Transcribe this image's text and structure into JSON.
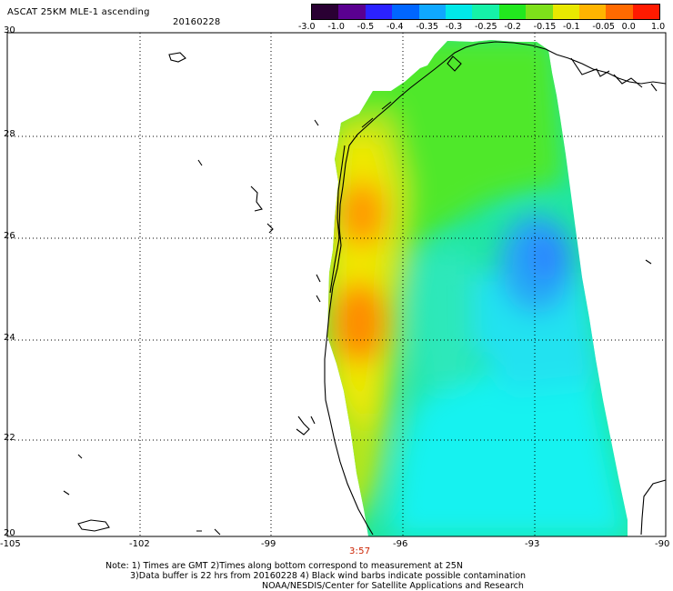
{
  "header": {
    "title": "ASCAT 25KM MLE-1 ascending",
    "date": "20160228"
  },
  "colorbar": {
    "labels": [
      "-3.0",
      "-1.0",
      "-0.5",
      "-0.4",
      "-0.35",
      "-0.3",
      "-0.25",
      "-0.2",
      "-0.15",
      "-0.1",
      "-0.05",
      "0.0",
      "1.0"
    ],
    "colors": [
      "#2a0033",
      "#5a0090",
      "#2b22ff",
      "#0066ff",
      "#0fa8ff",
      "#00e8e8",
      "#15f2a8",
      "#22e81e",
      "#7ee01a",
      "#e8e800",
      "#ffb400",
      "#ff6a00",
      "#ff1a00"
    ]
  },
  "axes": {
    "lat_labels": [
      "30",
      "28",
      "26",
      "24",
      "22",
      "20"
    ],
    "lon_labels": [
      "-105",
      "-102",
      "-99",
      "-96",
      "-93",
      "-90"
    ]
  },
  "time_label": "3:57",
  "time_color": "#cc2200",
  "notes": {
    "line1": "Note: 1) Times are GMT 2)Times along bottom correspond to measurement at 25N",
    "line2": "3)Data buffer is 22 hrs from 20160228 4) Black wind barbs indicate possible contamination",
    "line3": "NOAA/NESDIS/Center for Satellite Applications and Research"
  }
}
